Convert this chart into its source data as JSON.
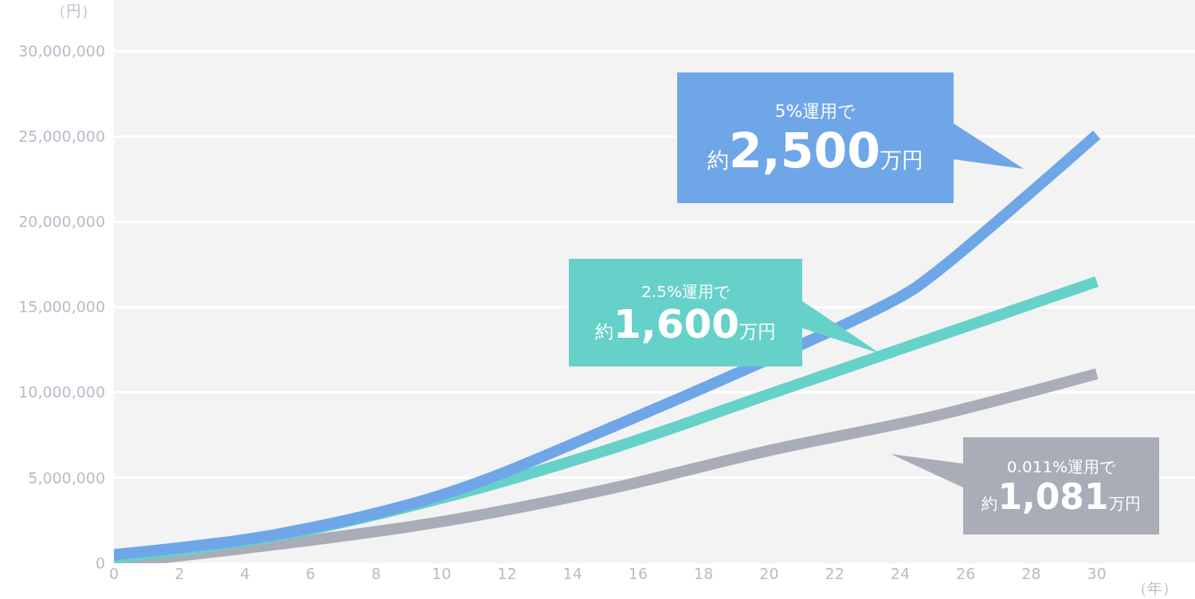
{
  "chart_data": {
    "type": "line",
    "xlabel": "（年）",
    "ylabel": "（円）",
    "x": [
      0,
      5,
      10,
      15,
      20,
      25,
      30
    ],
    "series": [
      {
        "color": "#a9adb8",
        "values": [
          0,
          1100000,
          2430000,
          4300000,
          6600000,
          8600000,
          11100000
        ]
      },
      {
        "color": "#66d1c9",
        "values": [
          300000,
          1600000,
          3800000,
          6600000,
          9900000,
          13200000,
          16500000
        ]
      },
      {
        "color": "#6fa6e8",
        "x": [
          0,
          5,
          10,
          15,
          24,
          25,
          30
        ],
        "values": [
          500000,
          1700000,
          4000000,
          7800000,
          15600000,
          16900000,
          25100000
        ]
      }
    ],
    "annotations": [
      "0.011%運用で",
      "約1,081万円",
      "2.5%運用で",
      "約1,600万円",
      "5%運用で",
      "約2,500万円"
    ],
    "xlim": [
      0,
      33
    ],
    "xticks": [
      0,
      2,
      4,
      6,
      8,
      10,
      12,
      14,
      16,
      18,
      20,
      22,
      24,
      26,
      28,
      30
    ],
    "ylim": [
      0,
      33000000
    ],
    "yticks": [
      {
        "value": 0,
        "label": "0"
      },
      {
        "value": 5000000,
        "label": "5,000,000"
      },
      {
        "value": 10000000,
        "label": "10,000,000"
      },
      {
        "value": 15000000,
        "label": "15,000,000"
      },
      {
        "value": 20000000,
        "label": "20,000,000"
      },
      {
        "value": 25000000,
        "label": "25,000,000"
      },
      {
        "value": 30000000,
        "label": "30,000,000"
      }
    ],
    "grid": "y",
    "marker": "none",
    "line_style": "solid"
  }
}
